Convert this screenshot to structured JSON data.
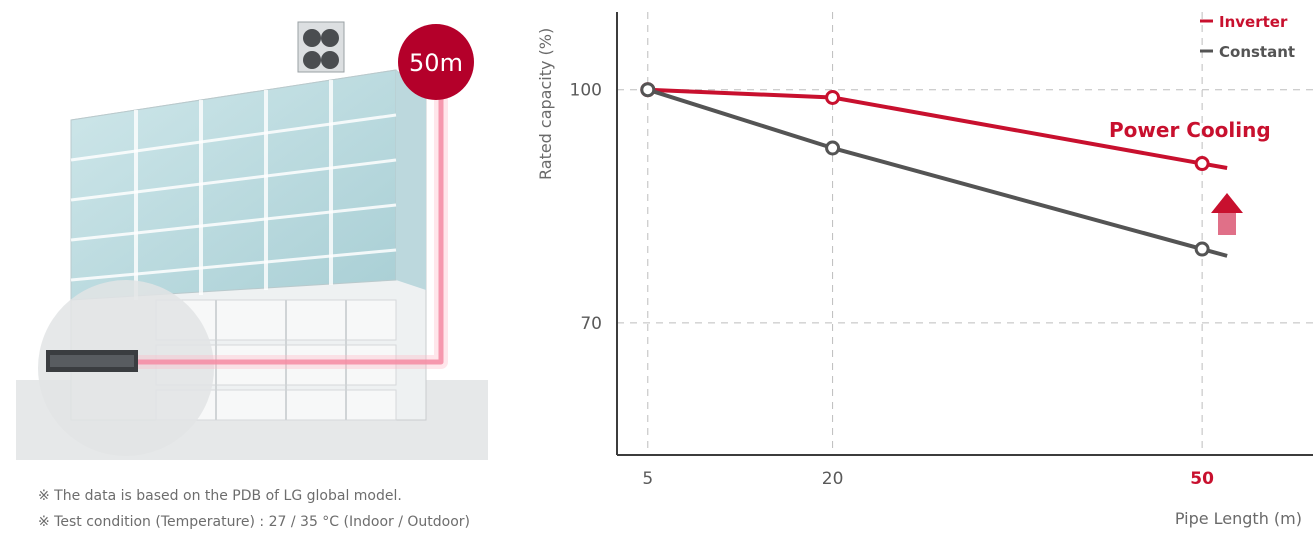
{
  "notes": [
    "※ The data is based on the PDB of LG global model.",
    "※ Test condition (Temperature) : 27 / 35 °C (Indoor / Outdoor)"
  ],
  "illustration": {
    "badge": "50m"
  },
  "colors": {
    "inverter": "#c8102e",
    "constant": "#545454",
    "highlight": "#c8102e"
  },
  "chart_data": {
    "type": "line",
    "x": [
      5,
      20,
      50
    ],
    "x_tick_labels": [
      "5",
      "20",
      "50"
    ],
    "highlight_x": 50,
    "y_ticks": [
      100,
      70
    ],
    "xlabel": "Pipe Length (m)",
    "ylabel": "Rated capacity (%)",
    "xlim": [
      2.5,
      59
    ],
    "ylim": [
      53,
      110
    ],
    "grid": true,
    "legend": "top-right",
    "series": [
      {
        "name": "Inverter",
        "key": "inverter",
        "values": [
          100,
          99,
          90.5
        ]
      },
      {
        "name": "Constant",
        "key": "constant",
        "values": [
          100,
          92.5,
          79.5
        ]
      }
    ],
    "annotations": [
      "Power Cooling"
    ]
  }
}
